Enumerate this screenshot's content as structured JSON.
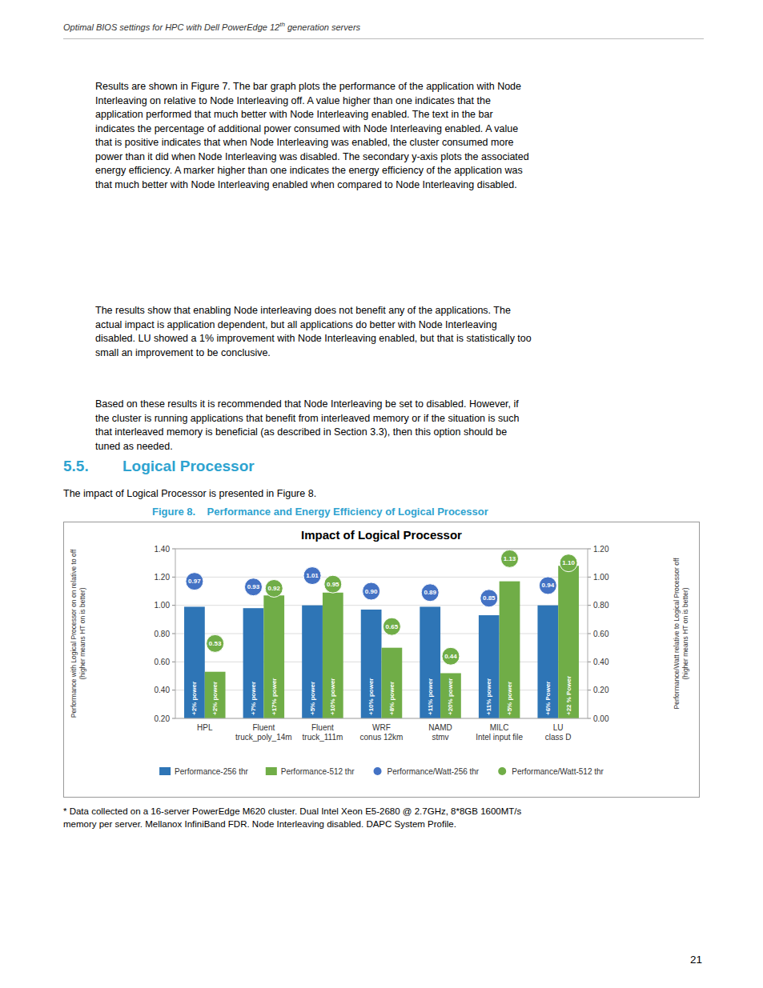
{
  "page": {
    "header_text": "Optimal BIOS settings for HPC with Dell PowerEdge 12",
    "header_superscript": "th",
    "header_text2": " generation servers",
    "body_text_1": "Results are shown in Figure 7. The bar graph plots the performance of the application with Node\nInterleaving on relative to Node Interleaving off. A value higher than one indicates that the\napplication performed that much better with Node Interleaving enabled. The text in the bar\nindicates the percentage of additional power consumed with Node Interleaving enabled. A value\nthat is positive indicates that when Node Interleaving was enabled, the cluster consumed more\npower than it did when Node Interleaving was disabled. The secondary y-axis plots the associated\nenergy efficiency. A marker higher than one indicates the energy efficiency of the application was\nthat much better with Node Interleaving enabled when compared to Node Interleaving disabled.",
    "body_text_2": "The results show that enabling Node interleaving does not benefit any of the applications. The\nactual impact is application dependent, but all applications do better with Node Interleaving\ndisabled. LU showed a 1% improvement with Node Interleaving enabled, but that is statistically too\nsmall an improvement to be conclusive.",
    "body_text_3": "Based on these results it is recommended that Node Interleaving be set to disabled. However, if\nthe cluster is running applications that benefit from interleaved memory or if the situation is such\nthat interleaved memory is beneficial (as described in Section 3.3), then this option should be\ntuned as needed.",
    "section_title": "5.5.        Logical Processor",
    "section_intro": "The impact of Logical Processor is presented in Figure 8.",
    "figure_caption": "Figure 8.    Performance and Energy Efficiency of Logical Processor",
    "footnote": "* Data collected on a 16-server PowerEdge M620 cluster. Dual Intel Xeon E5-2680 @ 2.7GHz, 8*8GB 1600MT/s\nmemory per server. Mellanox InfiniBand FDR. Node Interleaving disabled. DAPC System Profile.",
    "page_number": "21"
  },
  "chart_data": {
    "type": "bar",
    "title": "Impact of Logical Processor",
    "categories": [
      "HPL",
      "Fluent\ntruck_poly_14m",
      "Fluent\ntruck_111m",
      "WRF\nconus 12km",
      "NAMD\nstmv",
      "MILC\nIntel input file",
      "LU\nclass D"
    ],
    "series": [
      {
        "name": "Performance-256 thr",
        "type": "bar",
        "color": "#2E75B6",
        "values": [
          0.99,
          0.98,
          1.0,
          0.97,
          0.99,
          0.93,
          1.0
        ],
        "annotations": [
          "+2% power",
          "+7% power",
          "+5% power",
          "+10% power",
          "+11% power",
          "+11% power",
          "+6% Power"
        ]
      },
      {
        "name": "Performance-512 thr",
        "type": "bar",
        "color": "#70AD47",
        "values": [
          0.53,
          1.07,
          1.09,
          0.7,
          0.52,
          1.17,
          1.28
        ],
        "annotations": [
          "+2% power",
          "+17% power",
          "+10% power",
          "+8% power",
          "+20% power",
          "+5% power",
          "+22 % Power"
        ]
      },
      {
        "name": "Performance/Watt-256 thr",
        "type": "scatter",
        "axis": "y2",
        "marker": "circle",
        "color": "#4472C4",
        "data_labels": true,
        "values": [
          0.97,
          0.93,
          1.01,
          0.9,
          0.89,
          0.85,
          0.94
        ],
        "value_labels": [
          "0.97",
          "0.93",
          "1.01",
          "0.90",
          "0.89",
          "0.85",
          "0.94"
        ]
      },
      {
        "name": "Performance/Watt-512 thr",
        "type": "scatter",
        "axis": "y2",
        "marker": "circle",
        "color": "#70AD47",
        "data_labels": true,
        "values": [
          0.53,
          0.92,
          0.95,
          0.65,
          0.44,
          1.13,
          1.1
        ],
        "value_labels": [
          "0.53",
          "0.92",
          "0.95",
          "0.65",
          "0.44",
          "1.13",
          "1.10"
        ]
      }
    ],
    "ylabel": "Performance with Logical Processor on on relative to off\n(higher means  HT on is better)",
    "y2label": "Performance/Watt relative to Logical Processor  off\n(higher means HT  on is better)",
    "ylim": [
      0.2,
      1.4
    ],
    "yticks": [
      {
        "value": 0.2,
        "label": "0.20"
      },
      {
        "value": 0.4,
        "label": "0.40"
      },
      {
        "value": 0.6,
        "label": "0.60"
      },
      {
        "value": 0.8,
        "label": "0.80"
      },
      {
        "value": 1.0,
        "label": "1.00"
      },
      {
        "value": 1.2,
        "label": "1.20"
      },
      {
        "value": 1.4,
        "label": "1.40"
      }
    ],
    "y2lim": [
      0,
      1.2
    ],
    "y2ticks": [
      {
        "value": 0,
        "label": "0.00"
      },
      {
        "value": 0.2,
        "label": "0.20"
      },
      {
        "value": 0.4,
        "label": "0.40"
      },
      {
        "value": 0.6,
        "label": "0.60"
      },
      {
        "value": 0.8,
        "label": "0.80"
      },
      {
        "value": 1.0,
        "label": "1.00"
      },
      {
        "value": 1.2,
        "label": "1.20"
      }
    ],
    "grid": true,
    "legend": "bottom"
  }
}
